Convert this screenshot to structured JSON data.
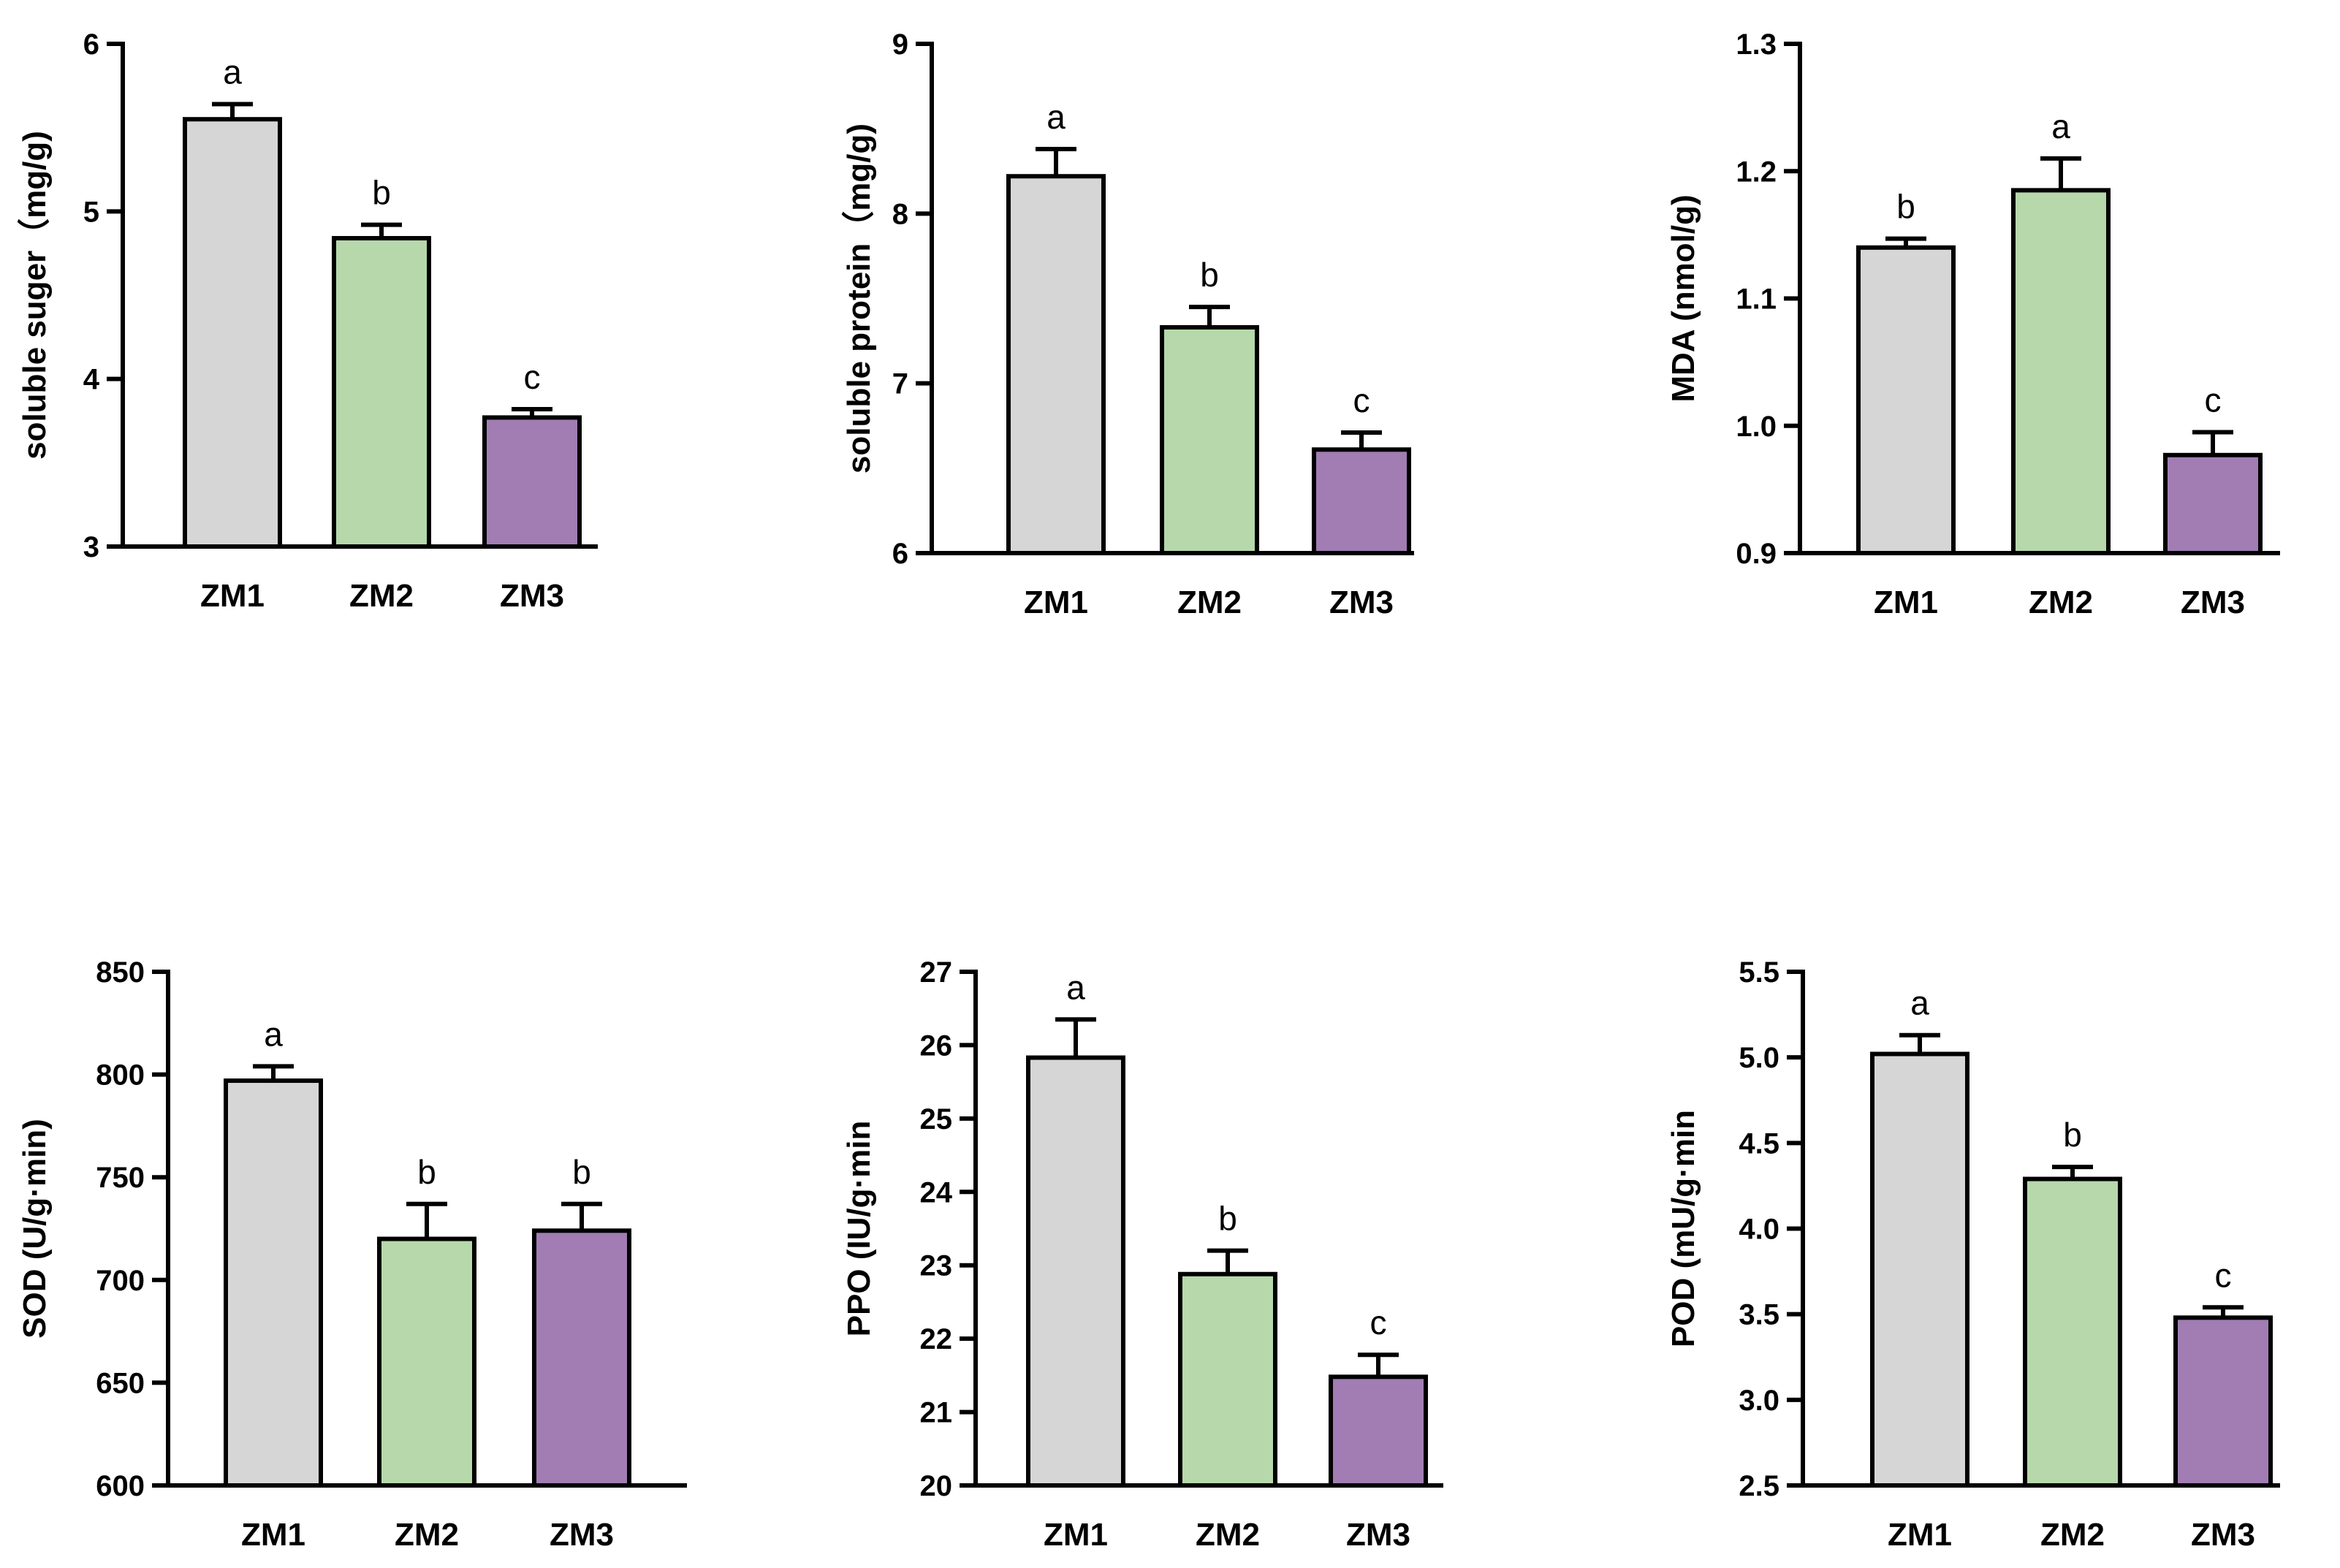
{
  "colors": {
    "ZM1": "#d6d6d6",
    "ZM2": "#b6d8ab",
    "ZM3": "#a17db4",
    "axis": "#000000"
  },
  "chart_data": [
    {
      "type": "bar",
      "ylabel": "soluble suger（mg/g)",
      "categories": [
        "ZM1",
        "ZM2",
        "ZM3"
      ],
      "values": [
        5.55,
        4.84,
        3.77
      ],
      "errors": [
        0.09,
        0.08,
        0.05
      ],
      "sig": [
        "a",
        "b",
        "c"
      ],
      "ylim": [
        3,
        6
      ],
      "yticks": [
        3,
        4,
        5,
        6
      ],
      "yticklabels": [
        "3",
        "4",
        "5",
        "6"
      ]
    },
    {
      "type": "bar",
      "ylabel": "soluble protein（mg/g)",
      "categories": [
        "ZM1",
        "ZM2",
        "ZM3"
      ],
      "values": [
        8.22,
        7.33,
        6.61
      ],
      "errors": [
        0.16,
        0.12,
        0.1
      ],
      "sig": [
        "a",
        "b",
        "c"
      ],
      "ylim": [
        6,
        9
      ],
      "yticks": [
        6,
        7,
        8,
        9
      ],
      "yticklabels": [
        "6",
        "7",
        "8",
        "9"
      ]
    },
    {
      "type": "bar",
      "ylabel": "MDA (nmol/g)",
      "categories": [
        "ZM1",
        "ZM2",
        "ZM3"
      ],
      "values": [
        1.14,
        1.185,
        0.977
      ],
      "errors": [
        0.007,
        0.025,
        0.018
      ],
      "sig": [
        "b",
        "a",
        "c"
      ],
      "ylim": [
        0.9,
        1.3
      ],
      "yticks": [
        0.9,
        1.0,
        1.1,
        1.2,
        1.3
      ],
      "yticklabels": [
        "0.9",
        "1.0",
        "1.1",
        "1.2",
        "1.3"
      ]
    },
    {
      "type": "bar",
      "ylabel": "SOD (U/g·min)",
      "categories": [
        "ZM1",
        "ZM2",
        "ZM3"
      ],
      "values": [
        797,
        720,
        724
      ],
      "errors": [
        7,
        17,
        13
      ],
      "sig": [
        "a",
        "b",
        "b"
      ],
      "ylim": [
        600,
        850
      ],
      "yticks": [
        600,
        650,
        700,
        750,
        800,
        850
      ],
      "yticklabels": [
        "600",
        "650",
        "700",
        "750",
        "800",
        "850"
      ]
    },
    {
      "type": "bar",
      "ylabel": "PPO (IU/g·min",
      "categories": [
        "ZM1",
        "ZM2",
        "ZM3"
      ],
      "values": [
        25.83,
        22.88,
        21.48
      ],
      "errors": [
        0.52,
        0.32,
        0.3
      ],
      "sig": [
        "a",
        "b",
        "c"
      ],
      "ylim": [
        20,
        27
      ],
      "yticks": [
        20,
        21,
        22,
        23,
        24,
        25,
        26,
        27
      ],
      "yticklabels": [
        "20",
        "21",
        "22",
        "23",
        "24",
        "25",
        "26",
        "27"
      ]
    },
    {
      "type": "bar",
      "ylabel": "POD (mU/g·min",
      "categories": [
        "ZM1",
        "ZM2",
        "ZM3"
      ],
      "values": [
        5.02,
        4.29,
        3.48
      ],
      "errors": [
        0.11,
        0.07,
        0.06
      ],
      "sig": [
        "a",
        "b",
        "c"
      ],
      "ylim": [
        2.5,
        5.5
      ],
      "yticks": [
        2.5,
        3.0,
        3.5,
        4.0,
        4.5,
        5.0,
        5.5
      ],
      "yticklabels": [
        "2.5",
        "3.0",
        "3.5",
        "4.0",
        "4.5",
        "5.0",
        "5.5"
      ]
    }
  ]
}
